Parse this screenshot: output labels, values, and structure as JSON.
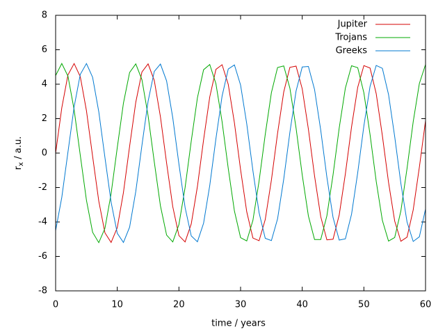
{
  "chart_data": {
    "type": "line",
    "xlabel": "time / years",
    "ylabel": [
      "r",
      "x",
      " / a.u."
    ],
    "xlim": [
      0,
      60
    ],
    "ylim": [
      -8,
      8
    ],
    "xticks": [
      0,
      10,
      20,
      30,
      40,
      50,
      60
    ],
    "yticks": [
      -8,
      -6,
      -4,
      -2,
      0,
      2,
      4,
      6,
      8
    ],
    "legend": "upper right",
    "x": [
      0,
      1,
      2,
      3,
      4,
      5,
      6,
      7,
      8,
      9,
      10,
      11,
      12,
      13,
      14,
      15,
      16,
      17,
      18,
      19,
      20,
      21,
      22,
      23,
      24,
      25,
      26,
      27,
      28,
      29,
      30,
      31,
      32,
      33,
      34,
      35,
      36,
      37,
      38,
      39,
      40,
      41,
      42,
      43,
      44,
      45,
      46,
      47,
      48,
      49,
      50,
      51,
      52,
      53,
      54,
      55,
      56,
      57,
      58,
      59,
      60
    ],
    "series": [
      {
        "name": "Jupiter",
        "color": "#d40000",
        "values": [
          0,
          2.63,
          4.54,
          5.2,
          4.44,
          2.46,
          -0.19,
          -2.79,
          -4.63,
          -5.19,
          -4.33,
          -2.29,
          0.39,
          2.95,
          4.71,
          5.18,
          4.22,
          2.11,
          -0.58,
          -3.11,
          -4.79,
          -5.16,
          -4.11,
          -1.94,
          0.77,
          3.26,
          4.86,
          5.13,
          3.99,
          1.76,
          -0.96,
          -3.41,
          -4.93,
          -5.09,
          -3.86,
          -1.57,
          1.15,
          3.55,
          4.98,
          5.05,
          3.73,
          1.39,
          -1.33,
          -3.69,
          -5.04,
          -5,
          -3.59,
          -1.2,
          1.52,
          3.82,
          5.08,
          4.94,
          3.45,
          1.01,
          -1.7,
          -3.95,
          -5.12,
          -4.88,
          -3.3,
          -0.82,
          1.88
        ]
      },
      {
        "name": "Trojans",
        "color": "#00a800",
        "values": [
          4.5,
          5.2,
          4.47,
          2.52,
          -0.13,
          -2.74,
          -4.6,
          -5.2,
          -4.37,
          -2.35,
          0.32,
          2.9,
          4.68,
          5.18,
          4.26,
          2.17,
          -0.51,
          -3.06,
          -4.76,
          -5.16,
          -4.15,
          -2,
          0.7,
          3.21,
          4.84,
          5.14,
          4.03,
          1.82,
          -0.89,
          -3.36,
          -4.91,
          -5.1,
          -3.91,
          -1.63,
          1.08,
          3.51,
          4.97,
          5.06,
          3.77,
          1.45,
          -1.27,
          -3.65,
          -5.02,
          -5.02,
          -3.64,
          -1.26,
          1.46,
          3.78,
          5.07,
          4.96,
          3.5,
          1.08,
          -1.64,
          -3.91,
          -5.11,
          -4.9,
          -3.36,
          -0.89,
          1.82,
          4.04,
          5.14
        ]
      },
      {
        "name": "Greeks",
        "color": "#0078d0",
        "values": [
          -4.5,
          -2.57,
          0.06,
          2.68,
          4.57,
          5.2,
          4.4,
          2.4,
          -0.26,
          -2.85,
          -4.66,
          -5.19,
          -4.3,
          -2.23,
          0.45,
          3.01,
          4.74,
          5.17,
          4.19,
          2.05,
          -0.64,
          -3.16,
          -4.81,
          -5.15,
          -4.07,
          -1.88,
          0.83,
          3.31,
          4.88,
          5.12,
          3.95,
          1.7,
          -1.02,
          -3.46,
          -4.95,
          -5.08,
          -3.82,
          -1.51,
          1.21,
          3.6,
          5,
          5.03,
          3.69,
          1.33,
          -1.4,
          -3.74,
          -5.05,
          -4.98,
          -3.55,
          -1.14,
          1.58,
          3.87,
          5.09,
          4.92,
          3.4,
          0.95,
          -1.76,
          -4,
          -5.13,
          -4.86,
          -3.25
        ]
      }
    ]
  }
}
